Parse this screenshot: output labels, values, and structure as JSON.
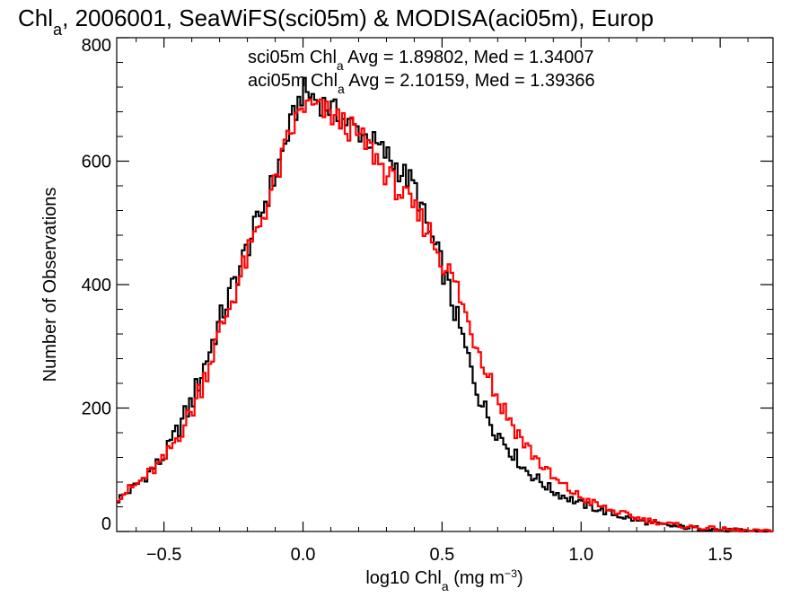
{
  "chart_data": {
    "type": "line",
    "title": "Chl_a, 2006001, SeaWiFS(sci05m) & MODISA(aci05m), Europ",
    "xlabel": "log10 Chl_a (mg m^-3)",
    "ylabel": "Number of Observations",
    "xlim": [
      -0.67,
      1.69
    ],
    "ylim": [
      0,
      800
    ],
    "x_ticks": [
      -0.5,
      0.0,
      0.5,
      1.0,
      1.5
    ],
    "x_tick_labels": [
      "−0.5",
      "0.0",
      "0.5",
      "1.0",
      "1.5"
    ],
    "y_ticks": [
      0,
      200,
      400,
      600,
      800
    ],
    "y_tick_labels": [
      "0",
      "200",
      "400",
      "600",
      "800"
    ],
    "grid": false,
    "annotations": [
      {
        "prefix": "sci05m Chl",
        "sub": "a",
        "suffix": " Avg = 1.89802, Med = 1.34007",
        "color": "#000000"
      },
      {
        "prefix": "aci05m Chl",
        "sub": "a",
        "suffix": " Avg = 2.10159, Med = 1.39366",
        "color": "#ff0000"
      }
    ],
    "series": [
      {
        "color": "#000000",
        "x": [
          -0.67,
          -0.6,
          -0.5,
          -0.4,
          -0.3,
          -0.2,
          -0.1,
          -0.05,
          0.0,
          0.05,
          0.1,
          0.15,
          0.2,
          0.25,
          0.3,
          0.35,
          0.4,
          0.45,
          0.5,
          0.55,
          0.6,
          0.65,
          0.7,
          0.8,
          0.9,
          1.0,
          1.1,
          1.2,
          1.3,
          1.4,
          1.5,
          1.6,
          1.69
        ],
        "y": [
          50,
          75,
          120,
          210,
          340,
          460,
          575,
          650,
          715,
          700,
          685,
          665,
          650,
          630,
          610,
          585,
          560,
          490,
          430,
          350,
          270,
          200,
          160,
          100,
          65,
          45,
          30,
          18,
          10,
          6,
          3,
          1,
          0
        ]
      },
      {
        "color": "#ff0000",
        "x": [
          -0.67,
          -0.6,
          -0.5,
          -0.4,
          -0.3,
          -0.2,
          -0.1,
          -0.05,
          0.0,
          0.05,
          0.1,
          0.15,
          0.2,
          0.25,
          0.3,
          0.35,
          0.4,
          0.45,
          0.5,
          0.55,
          0.6,
          0.65,
          0.7,
          0.8,
          0.9,
          1.0,
          1.1,
          1.2,
          1.3,
          1.4,
          1.5,
          1.6,
          1.69
        ],
        "y": [
          55,
          75,
          115,
          195,
          320,
          445,
          565,
          640,
          690,
          685,
          675,
          660,
          640,
          615,
          580,
          550,
          520,
          490,
          440,
          400,
          330,
          280,
          215,
          140,
          85,
          55,
          35,
          22,
          13,
          7,
          4,
          1,
          0
        ]
      }
    ]
  }
}
